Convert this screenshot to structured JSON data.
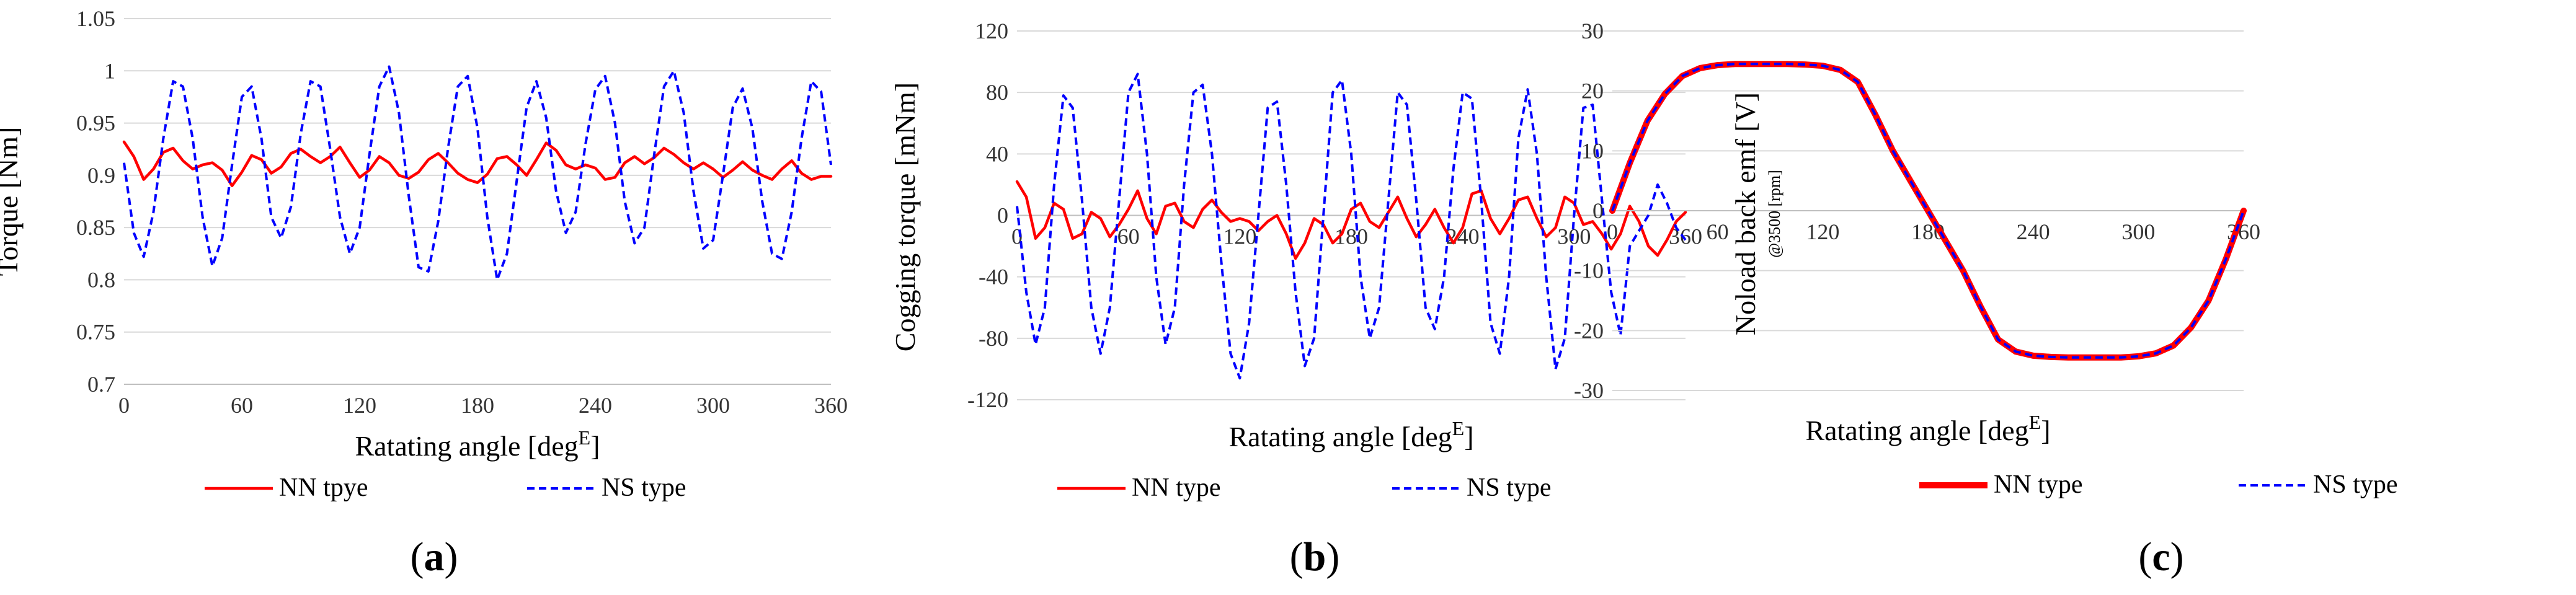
{
  "chart_data": [
    {
      "type": "line",
      "caption": "a",
      "xlabel": "Ratating angle [deg",
      "xlabel_sup": "E",
      "xlabel_close": "]",
      "ylabel": "Torque [Nm]",
      "ylabel_sub": "",
      "xlim": [
        0,
        360
      ],
      "ylim": [
        0.7,
        1.05
      ],
      "x_ticks": [
        "0",
        "60",
        "120",
        "180",
        "240",
        "300",
        "360"
      ],
      "y_ticks": [
        "0.7",
        "0.75",
        "0.8",
        "0.85",
        "0.9",
        "0.95",
        "1",
        "1.05"
      ],
      "x_tick_values": [
        0,
        60,
        120,
        180,
        240,
        300,
        360
      ],
      "y_tick_values": [
        0.7,
        0.75,
        0.8,
        0.85,
        0.9,
        0.95,
        1.0,
        1.05
      ],
      "grid": "horizontal",
      "legend": "bottom",
      "series": [
        {
          "name": "NN tpye",
          "color": "#ff0000",
          "style": "solid",
          "x": [
            0,
            5,
            10,
            15,
            20,
            25,
            30,
            35,
            40,
            45,
            50,
            55,
            60,
            65,
            70,
            75,
            80,
            85,
            90,
            95,
            100,
            105,
            110,
            115,
            120,
            125,
            130,
            135,
            140,
            145,
            150,
            155,
            160,
            165,
            170,
            175,
            180,
            185,
            190,
            195,
            200,
            205,
            210,
            215,
            220,
            225,
            230,
            235,
            240,
            245,
            250,
            255,
            260,
            265,
            270,
            275,
            280,
            285,
            290,
            295,
            300,
            305,
            310,
            315,
            320,
            325,
            330,
            335,
            340,
            345,
            350,
            355,
            360
          ],
          "values": [
            0.932,
            0.918,
            0.896,
            0.906,
            0.922,
            0.926,
            0.914,
            0.906,
            0.91,
            0.912,
            0.905,
            0.89,
            0.903,
            0.919,
            0.915,
            0.902,
            0.908,
            0.921,
            0.925,
            0.918,
            0.912,
            0.918,
            0.927,
            0.912,
            0.898,
            0.905,
            0.918,
            0.912,
            0.9,
            0.897,
            0.903,
            0.915,
            0.921,
            0.912,
            0.902,
            0.896,
            0.893,
            0.901,
            0.916,
            0.918,
            0.91,
            0.9,
            0.915,
            0.931,
            0.924,
            0.91,
            0.906,
            0.91,
            0.907,
            0.896,
            0.898,
            0.912,
            0.918,
            0.911,
            0.917,
            0.926,
            0.92,
            0.912,
            0.906,
            0.912,
            0.906,
            0.898,
            0.905,
            0.913,
            0.905,
            0.9,
            0.896,
            0.906,
            0.914,
            0.902,
            0.896,
            0.899,
            0.899
          ]
        },
        {
          "name": "NS type",
          "color": "#0000ff",
          "style": "dashed",
          "x": [
            0,
            5,
            10,
            15,
            20,
            25,
            30,
            35,
            40,
            45,
            50,
            55,
            60,
            65,
            70,
            75,
            80,
            85,
            90,
            95,
            100,
            105,
            110,
            115,
            120,
            125,
            130,
            135,
            140,
            145,
            150,
            155,
            160,
            165,
            170,
            175,
            180,
            185,
            190,
            195,
            200,
            205,
            210,
            215,
            220,
            225,
            230,
            235,
            240,
            245,
            250,
            255,
            260,
            265,
            270,
            275,
            280,
            285,
            290,
            295,
            300,
            305,
            310,
            315,
            320,
            325,
            330,
            335,
            340,
            345,
            350,
            355,
            360
          ],
          "values": [
            0.912,
            0.845,
            0.822,
            0.865,
            0.935,
            0.99,
            0.985,
            0.935,
            0.86,
            0.813,
            0.84,
            0.91,
            0.975,
            0.985,
            0.935,
            0.86,
            0.84,
            0.87,
            0.94,
            0.99,
            0.985,
            0.925,
            0.86,
            0.825,
            0.85,
            0.92,
            0.985,
            1.004,
            0.96,
            0.88,
            0.812,
            0.808,
            0.856,
            0.926,
            0.985,
            0.995,
            0.945,
            0.86,
            0.8,
            0.825,
            0.895,
            0.965,
            0.99,
            0.955,
            0.885,
            0.845,
            0.865,
            0.93,
            0.982,
            0.995,
            0.95,
            0.875,
            0.835,
            0.85,
            0.92,
            0.985,
            1.0,
            0.96,
            0.885,
            0.83,
            0.838,
            0.9,
            0.965,
            0.983,
            0.945,
            0.875,
            0.825,
            0.82,
            0.865,
            0.935,
            0.99,
            0.98,
            0.91
          ]
        }
      ]
    },
    {
      "type": "line",
      "caption": "b",
      "xlabel": "Ratating angle [deg",
      "xlabel_sup": "E",
      "xlabel_close": "]",
      "ylabel": "Cogging torque [mNm]",
      "ylabel_sub": "",
      "xlim": [
        0,
        360
      ],
      "ylim": [
        -120,
        120
      ],
      "x_ticks": [
        "0",
        "60",
        "120",
        "180",
        "240",
        "300",
        "360"
      ],
      "y_ticks": [
        "-120",
        "-80",
        "-40",
        "0",
        "40",
        "80",
        "120"
      ],
      "x_tick_values": [
        0,
        60,
        120,
        180,
        240,
        300,
        360
      ],
      "y_tick_values": [
        -120,
        -80,
        -40,
        0,
        40,
        80,
        120
      ],
      "grid": "horizontal",
      "legend": "bottom",
      "series": [
        {
          "name": "NN type",
          "color": "#ff0000",
          "style": "solid",
          "x": [
            0,
            5,
            10,
            15,
            20,
            25,
            30,
            35,
            40,
            45,
            50,
            55,
            60,
            65,
            70,
            75,
            80,
            85,
            90,
            95,
            100,
            105,
            110,
            115,
            120,
            125,
            130,
            135,
            140,
            145,
            150,
            155,
            160,
            165,
            170,
            175,
            180,
            185,
            190,
            195,
            200,
            205,
            210,
            215,
            220,
            225,
            230,
            235,
            240,
            245,
            250,
            255,
            260,
            265,
            270,
            275,
            280,
            285,
            290,
            295,
            300,
            305,
            310,
            315,
            320,
            325,
            330,
            335,
            340,
            345,
            350,
            355,
            360
          ],
          "values": [
            22,
            12,
            -15,
            -8,
            8,
            4,
            -15,
            -12,
            2,
            -2,
            -14,
            -6,
            4,
            16,
            -2,
            -12,
            6,
            8,
            -4,
            -8,
            4,
            10,
            2,
            -4,
            -2,
            -4,
            -10,
            -4,
            0,
            -12,
            -28,
            -18,
            -2,
            -6,
            -18,
            -12,
            4,
            8,
            -4,
            -8,
            2,
            12,
            -2,
            -14,
            -6,
            4,
            -8,
            -18,
            -8,
            14,
            16,
            -2,
            -12,
            -2,
            10,
            12,
            -2,
            -14,
            -8,
            12,
            8,
            -6,
            -4,
            -12,
            -22,
            -12,
            6,
            -4,
            -20,
            -26,
            -16,
            -4,
            2
          ]
        },
        {
          "name": "NS type",
          "color": "#0000ff",
          "style": "dashed",
          "x": [
            0,
            5,
            10,
            15,
            20,
            25,
            30,
            35,
            40,
            45,
            50,
            55,
            60,
            65,
            70,
            75,
            80,
            85,
            90,
            95,
            100,
            105,
            110,
            115,
            120,
            125,
            130,
            135,
            140,
            145,
            150,
            155,
            160,
            165,
            170,
            175,
            180,
            185,
            190,
            195,
            200,
            205,
            210,
            215,
            220,
            225,
            230,
            235,
            240,
            245,
            250,
            255,
            260,
            265,
            270,
            275,
            280,
            285,
            290,
            295,
            300,
            305,
            310,
            315,
            320,
            325,
            330,
            335,
            340,
            345,
            350,
            355,
            360
          ],
          "values": [
            6,
            -50,
            -84,
            -60,
            20,
            78,
            70,
            10,
            -60,
            -90,
            -60,
            10,
            80,
            92,
            40,
            -40,
            -84,
            -60,
            20,
            80,
            85,
            40,
            -30,
            -90,
            -106,
            -70,
            0,
            70,
            74,
            20,
            -50,
            -98,
            -80,
            0,
            80,
            88,
            40,
            -40,
            -80,
            -60,
            10,
            80,
            72,
            10,
            -60,
            -74,
            -40,
            30,
            80,
            76,
            10,
            -70,
            -90,
            -40,
            50,
            82,
            40,
            -40,
            -100,
            -80,
            0,
            70,
            72,
            10,
            -50,
            -78,
            -20,
            -10,
            0,
            20,
            8,
            -8,
            -16
          ]
        }
      ]
    },
    {
      "type": "line",
      "caption": "c",
      "xlabel": "Ratating angle [deg",
      "xlabel_sup": "E",
      "xlabel_close": "]",
      "ylabel": "Noload back emf [V]",
      "ylabel_sub": "@3500 [rpm]",
      "xlim": [
        0,
        360
      ],
      "ylim": [
        -30,
        30
      ],
      "x_ticks": [
        "0",
        "60",
        "120",
        "180",
        "240",
        "300",
        "360"
      ],
      "y_ticks": [
        "-30",
        "-20",
        "-10",
        "0",
        "10",
        "20",
        "30"
      ],
      "x_tick_values": [
        0,
        60,
        120,
        180,
        240,
        300,
        360
      ],
      "y_tick_values": [
        -30,
        -20,
        -10,
        0,
        10,
        20,
        30
      ],
      "grid": "horizontal",
      "legend": "bottom",
      "series": [
        {
          "name": "NN type",
          "color": "#ff0000",
          "style": "thick",
          "x": [
            0,
            10,
            20,
            30,
            40,
            50,
            60,
            70,
            80,
            90,
            100,
            110,
            120,
            130,
            140,
            150,
            160,
            170,
            180,
            190,
            200,
            210,
            220,
            230,
            240,
            250,
            260,
            270,
            280,
            290,
            300,
            310,
            320,
            330,
            340,
            350,
            360
          ],
          "values": [
            0,
            8,
            15,
            19.5,
            22.5,
            23.8,
            24.3,
            24.5,
            24.5,
            24.5,
            24.5,
            24.4,
            24.2,
            23.5,
            21.5,
            16,
            10,
            5,
            0,
            -5,
            -10,
            -16,
            -21.5,
            -23.5,
            -24.2,
            -24.4,
            -24.5,
            -24.5,
            -24.5,
            -24.5,
            -24.3,
            -23.8,
            -22.5,
            -19.5,
            -15,
            -8,
            0
          ]
        },
        {
          "name": "NS type",
          "color": "#0000ff",
          "style": "dashed",
          "x": [
            0,
            10,
            20,
            30,
            40,
            50,
            60,
            70,
            80,
            90,
            100,
            110,
            120,
            130,
            140,
            150,
            160,
            170,
            180,
            190,
            200,
            210,
            220,
            230,
            240,
            250,
            260,
            270,
            280,
            290,
            300,
            310,
            320,
            330,
            340,
            350,
            360
          ],
          "values": [
            0,
            8,
            15,
            19.5,
            22.5,
            23.8,
            24.3,
            24.5,
            24.5,
            24.5,
            24.5,
            24.4,
            24.2,
            23.5,
            21.5,
            16,
            10,
            5,
            0,
            -5,
            -10,
            -16,
            -21.5,
            -23.5,
            -24.2,
            -24.4,
            -24.5,
            -24.5,
            -24.5,
            -24.5,
            -24.3,
            -23.8,
            -22.5,
            -19.5,
            -15,
            -8,
            0
          ]
        }
      ]
    }
  ]
}
